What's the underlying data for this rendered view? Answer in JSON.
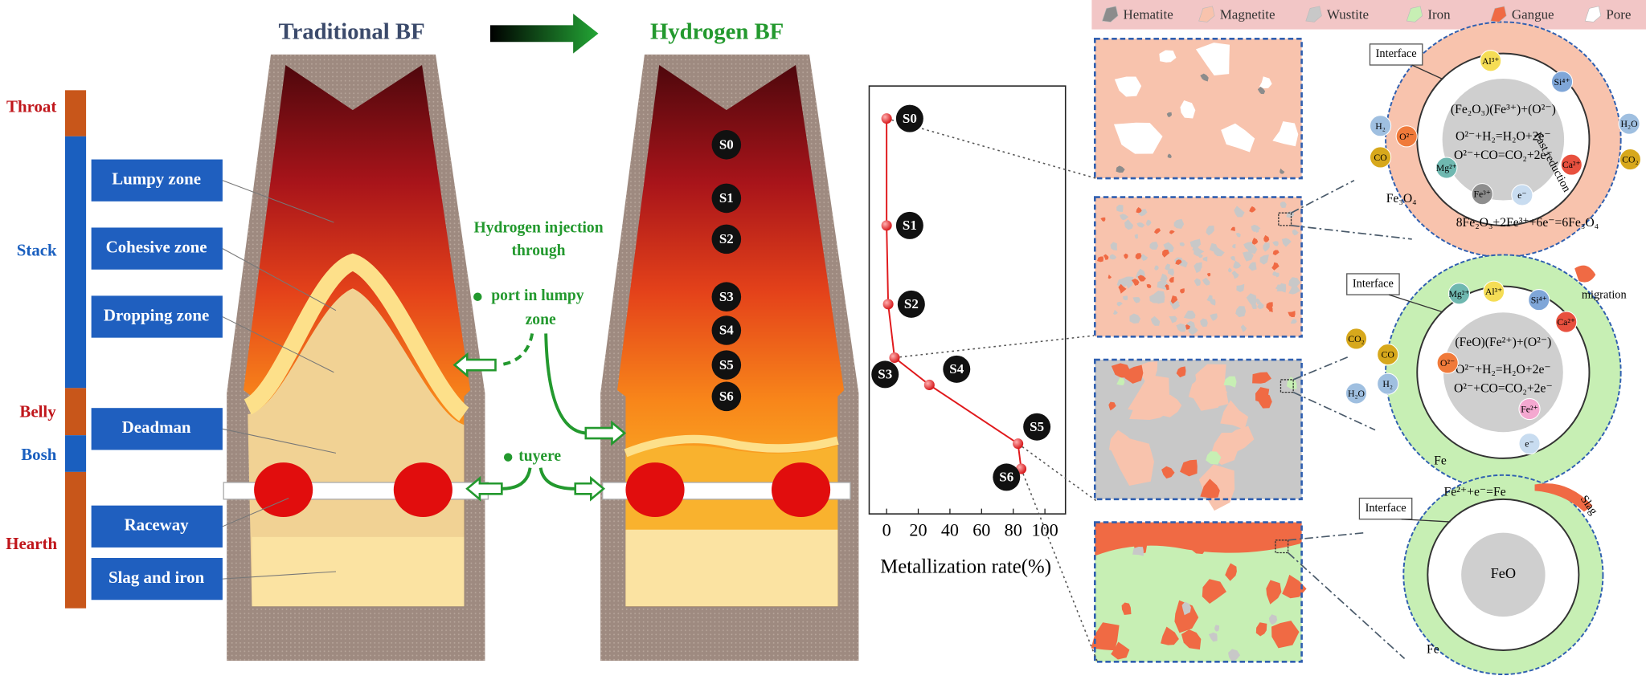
{
  "furnaces": {
    "title_traditional": "Traditional BF",
    "title_hydrogen": "Hydrogen BF",
    "regions": [
      "Throat",
      "Stack",
      "Belly",
      "Bosh",
      "Hearth"
    ],
    "zones": [
      "Lumpy zone",
      "Cohesive zone",
      "Dropping zone",
      "Deadman",
      "Raceway",
      "Slag and iron"
    ],
    "annotations": [
      "Hydrogen injection",
      "through",
      "port in lumpy",
      "zone",
      "tuyere"
    ]
  },
  "chart_data": {
    "type": "line",
    "categories": [
      "S0",
      "S1",
      "S2",
      "S3",
      "S4",
      "S5",
      "S6"
    ],
    "values": [
      0,
      0,
      1,
      5,
      27,
      83,
      85
    ],
    "x_label": "Metallization rate(%)",
    "xlim": [
      -11,
      113
    ],
    "xticks": [
      0,
      20,
      40,
      60,
      80,
      100
    ],
    "color": "#e0191c"
  },
  "legend": {
    "items": [
      {
        "name": "Hematite",
        "color": "#8c8c8c"
      },
      {
        "name": "Magnetite",
        "color": "#f8c3ad"
      },
      {
        "name": "Wustite",
        "color": "#c8c8c8"
      },
      {
        "name": "Iron",
        "color": "#c7efb4"
      },
      {
        "name": "Gangue",
        "color": "#f06a44"
      },
      {
        "name": "Pore",
        "color": "#ffffff"
      }
    ]
  },
  "particles": [
    {
      "interface": "Interface",
      "core_equations": [
        "(Fe₂O₃)(Fe³⁺)+(O²⁻)",
        "O²⁻+H₂=H₂O+2e⁻",
        "O²⁻+CO=CO₂+2e⁻"
      ],
      "ions": [
        "Al³⁺",
        "Si⁴⁺",
        "H₂",
        "O²⁻",
        "CO",
        "Mg²⁺",
        "Ca²⁺",
        "Fe³⁺",
        "e⁻",
        "H₂O",
        "CO₂"
      ],
      "phase": "Fe₃O₄",
      "note": "Fast reduction",
      "reaction": "8Fe₂O₃+2Fe³⁺+6e⁻=6Fe₃O₄"
    },
    {
      "interface": "Interface",
      "core_equations": [
        "(FeO)(Fe²⁺)+(O²⁻)",
        "O²⁻+H₂=H₂O+2e⁻",
        "O²⁻+CO=CO₂+2e⁻"
      ],
      "ions": [
        "Mg²⁺",
        "Al³⁺",
        "Si⁴⁺",
        "Ca²⁺",
        "CO₂",
        "CO",
        "O²⁻",
        "H₂O",
        "H₂",
        "Fe²⁺",
        "e⁻"
      ],
      "phase": "Fe",
      "note": "migration",
      "reaction": "Fe²⁺+e⁻=Fe"
    },
    {
      "interface": "Interface",
      "core": "FeO",
      "phase": "Fe",
      "note": "Slag"
    }
  ]
}
